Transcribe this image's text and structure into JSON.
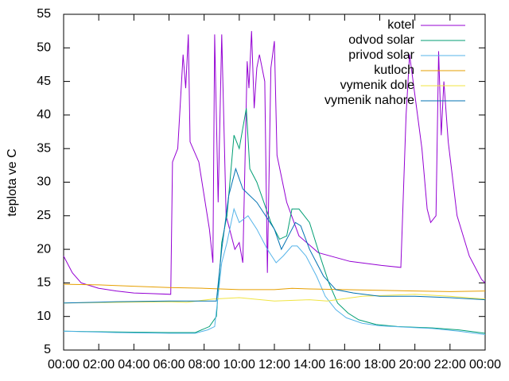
{
  "chart_data": {
    "type": "line",
    "y_label": "teplota ve C",
    "xlim": [
      0,
      24
    ],
    "ylim": [
      5,
      55
    ],
    "xticks": [
      {
        "value": 0,
        "label": "00:00"
      },
      {
        "value": 2,
        "label": "02:00"
      },
      {
        "value": 4,
        "label": "04:00"
      },
      {
        "value": 6,
        "label": "06:00"
      },
      {
        "value": 8,
        "label": "08:00"
      },
      {
        "value": 10,
        "label": "10:00"
      },
      {
        "value": 12,
        "label": "12:00"
      },
      {
        "value": 14,
        "label": "14:00"
      },
      {
        "value": 16,
        "label": "16:00"
      },
      {
        "value": 18,
        "label": "18:00"
      },
      {
        "value": 20,
        "label": "20:00"
      },
      {
        "value": 22,
        "label": "22:00"
      },
      {
        "value": 24,
        "label": "00:00"
      }
    ],
    "yticks": [
      5,
      10,
      15,
      20,
      25,
      30,
      35,
      40,
      45,
      50,
      55
    ],
    "legend": "top-right",
    "series": [
      {
        "name": "kotel",
        "color": "#9400d3",
        "x": [
          0,
          0.5,
          1,
          2,
          3,
          4,
          5,
          6.1,
          6.2,
          6.5,
          6.8,
          6.95,
          7.1,
          7.2,
          7.7,
          8.3,
          8.5,
          8.6,
          8.8,
          9.0,
          9.25,
          9.75,
          10.0,
          10.2,
          10.45,
          10.55,
          10.7,
          10.85,
          11.0,
          11.15,
          11.45,
          11.6,
          11.8,
          12.0,
          12.15,
          12.7,
          13.4,
          14.5,
          16.3,
          18.1,
          19.2,
          19.5,
          19.7,
          20.4,
          20.7,
          20.9,
          21.2,
          21.35,
          21.5,
          21.65,
          21.9,
          22.4,
          23.1,
          23.8,
          24
        ],
        "values": [
          19,
          16.5,
          15,
          14.2,
          13.8,
          13.5,
          13.4,
          13.3,
          33,
          35,
          49,
          44,
          52,
          36,
          33,
          23,
          18,
          52,
          27,
          52,
          25,
          20,
          21,
          18,
          48,
          44,
          52.5,
          41,
          47,
          49,
          45,
          16.5,
          47,
          51,
          34,
          27,
          22,
          19.5,
          18.2,
          17.6,
          17.3,
          40,
          49,
          35,
          26,
          24,
          25,
          49.5,
          37,
          45,
          36,
          25,
          19,
          15.5,
          15
        ]
      },
      {
        "name": "odvod solar",
        "color": "#009e73",
        "x": [
          0,
          3,
          6,
          7.5,
          8.3,
          8.7,
          9.0,
          9.3,
          9.7,
          10.0,
          10.4,
          10.6,
          11.0,
          11.4,
          11.8,
          12.3,
          12.7,
          13.0,
          13.4,
          14.0,
          14.6,
          15.1,
          15.6,
          16.2,
          16.8,
          17.8,
          19,
          21,
          22.5,
          24
        ],
        "values": [
          7.8,
          7.7,
          7.6,
          7.6,
          8.5,
          10,
          21,
          25,
          37,
          35,
          41,
          32,
          30,
          27,
          24,
          21.5,
          22,
          26,
          26,
          24,
          19,
          15,
          12,
          10.5,
          9.5,
          8.8,
          8.5,
          8.3,
          8,
          7.5
        ]
      },
      {
        "name": "privod solar",
        "color": "#56b4e9",
        "x": [
          0,
          3,
          6,
          7.5,
          8.2,
          8.6,
          9.0,
          9.3,
          9.7,
          10.0,
          10.5,
          11.0,
          11.6,
          12.1,
          12.5,
          13.0,
          13.3,
          13.8,
          14.4,
          14.9,
          15.5,
          16.1,
          17,
          18,
          19.5,
          21,
          22.5,
          24
        ],
        "values": [
          7.8,
          7.6,
          7.5,
          7.5,
          8,
          8.5,
          18,
          21,
          26,
          24,
          25,
          23,
          20,
          18,
          19,
          20.5,
          20.5,
          19,
          16,
          13,
          11,
          9.8,
          9,
          8.6,
          8.4,
          8.2,
          7.8,
          7.3
        ]
      },
      {
        "name": "kutloch",
        "color": "#e69f00",
        "x": [
          0,
          2,
          4,
          6,
          8,
          10,
          12,
          13,
          14,
          16,
          18,
          20,
          22,
          24
        ],
        "values": [
          14.8,
          14.7,
          14.5,
          14.3,
          14.2,
          14,
          14,
          14.2,
          14.1,
          14,
          13.9,
          13.8,
          13.7,
          13.8
        ]
      },
      {
        "name": "vymenik dole",
        "color": "#f0e442",
        "x": [
          0,
          3,
          6,
          7,
          8.5,
          10,
          12,
          14,
          15,
          17,
          20,
          22,
          24
        ],
        "values": [
          12,
          12.1,
          12.2,
          12.1,
          12.6,
          12.8,
          12.3,
          12.5,
          12.3,
          13,
          13.3,
          13,
          12.6
        ]
      },
      {
        "name": "vymenik nahore",
        "color": "#0072b2",
        "x": [
          0,
          3,
          6,
          8.7,
          9.0,
          9.4,
          9.8,
          10.2,
          11,
          12,
          12.4,
          12.8,
          13.2,
          13.5,
          14,
          14.8,
          15.5,
          16.5,
          18,
          20,
          22,
          24
        ],
        "values": [
          12,
          12.2,
          12.3,
          12.3,
          20,
          28,
          32,
          29,
          27,
          23,
          20,
          22,
          24,
          23.5,
          20,
          16,
          14,
          13.5,
          13,
          13,
          12.8,
          12.5
        ]
      }
    ]
  }
}
